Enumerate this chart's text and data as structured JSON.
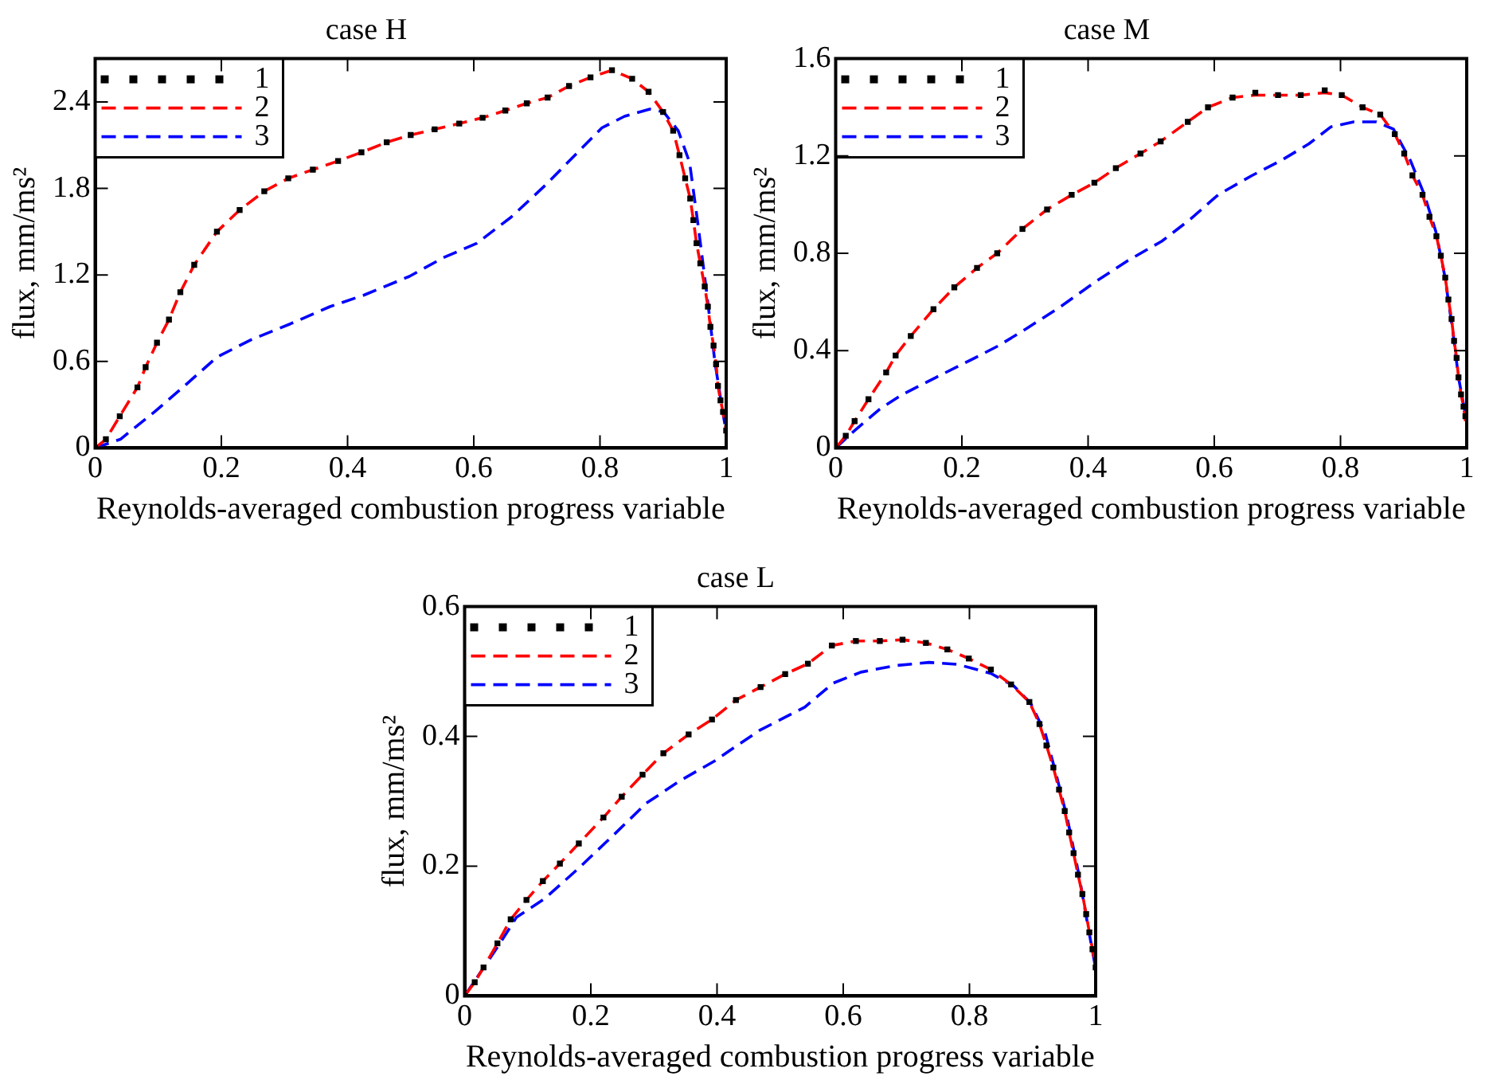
{
  "chart_data": [
    {
      "type": "line",
      "title": "case H",
      "xlabel": "Reynolds-averaged combustion progress variable",
      "ylabel": "flux, mm/ms²",
      "xlim": [
        0,
        1
      ],
      "xticks": [
        0,
        0.2,
        0.4,
        0.6,
        0.8,
        1
      ],
      "ylim": [
        0,
        2.7
      ],
      "yticks": [
        0,
        0.6,
        1.2,
        1.8,
        2.4
      ],
      "grid": false,
      "legend": "top left",
      "series": [
        {
          "name": "1",
          "type": "scatter",
          "marker": "square",
          "color": "#000000",
          "x": [
            0,
            0.017,
            0.039,
            0.067,
            0.08,
            0.098,
            0.117,
            0.135,
            0.157,
            0.193,
            0.229,
            0.268,
            0.306,
            0.345,
            0.385,
            0.422,
            0.462,
            0.5,
            0.538,
            0.577,
            0.614,
            0.65,
            0.684,
            0.717,
            0.751,
            0.785,
            0.819,
            0.851,
            0.877,
            0.9,
            0.916,
            0.926,
            0.935,
            0.943,
            0.948,
            0.953,
            0.959,
            0.966,
            0.971,
            0.975,
            0.98,
            0.984,
            0.987,
            0.991,
            0.995,
            1.0
          ],
          "values": [
            0,
            0.06,
            0.22,
            0.42,
            0.56,
            0.73,
            0.89,
            1.08,
            1.27,
            1.5,
            1.65,
            1.78,
            1.87,
            1.93,
            1.99,
            2.05,
            2.12,
            2.17,
            2.21,
            2.25,
            2.29,
            2.34,
            2.39,
            2.43,
            2.51,
            2.57,
            2.62,
            2.56,
            2.47,
            2.33,
            2.2,
            2.03,
            1.87,
            1.73,
            1.58,
            1.42,
            1.28,
            1.12,
            0.98,
            0.84,
            0.71,
            0.58,
            0.43,
            0.33,
            0.25,
            0.12
          ]
        },
        {
          "name": "2",
          "type": "line",
          "line_style": "dashed",
          "color": "#ff0000",
          "x": [
            0,
            0.017,
            0.039,
            0.067,
            0.08,
            0.098,
            0.117,
            0.135,
            0.157,
            0.193,
            0.229,
            0.268,
            0.306,
            0.345,
            0.385,
            0.422,
            0.462,
            0.5,
            0.538,
            0.577,
            0.614,
            0.65,
            0.684,
            0.717,
            0.751,
            0.785,
            0.819,
            0.851,
            0.877,
            0.9,
            0.916,
            0.926,
            0.935,
            0.943,
            0.948,
            0.953,
            0.959,
            0.966,
            0.971,
            0.975,
            0.98,
            0.984,
            0.987,
            0.991,
            0.995,
            1.0
          ],
          "values": [
            0,
            0.06,
            0.22,
            0.42,
            0.56,
            0.73,
            0.89,
            1.08,
            1.27,
            1.5,
            1.65,
            1.78,
            1.87,
            1.93,
            1.99,
            2.05,
            2.12,
            2.17,
            2.21,
            2.25,
            2.29,
            2.34,
            2.39,
            2.43,
            2.51,
            2.57,
            2.62,
            2.56,
            2.47,
            2.33,
            2.2,
            2.03,
            1.87,
            1.73,
            1.58,
            1.42,
            1.28,
            1.12,
            0.98,
            0.84,
            0.71,
            0.58,
            0.43,
            0.33,
            0.25,
            0.12
          ]
        },
        {
          "name": "3",
          "type": "line",
          "line_style": "dashed",
          "color": "#0000ff",
          "x": [
            0,
            0.04,
            0.094,
            0.139,
            0.193,
            0.247,
            0.309,
            0.372,
            0.426,
            0.498,
            0.552,
            0.605,
            0.659,
            0.713,
            0.767,
            0.803,
            0.839,
            0.879,
            0.901,
            0.924,
            0.942,
            0.955,
            0.969,
            0.982,
            0.993,
            1.0
          ],
          "values": [
            0,
            0.06,
            0.25,
            0.42,
            0.63,
            0.75,
            0.86,
            0.98,
            1.06,
            1.19,
            1.32,
            1.42,
            1.6,
            1.82,
            2.06,
            2.22,
            2.3,
            2.35,
            2.33,
            2.2,
            1.98,
            1.56,
            1.08,
            0.6,
            0.29,
            0.11
          ]
        }
      ]
    },
    {
      "type": "line",
      "title": "case M",
      "xlabel": "Reynolds-averaged combustion progress variable",
      "ylabel": "flux, mm/ms²",
      "xlim": [
        0,
        1
      ],
      "xticks": [
        0,
        0.2,
        0.4,
        0.6,
        0.8,
        1
      ],
      "ylim": [
        0,
        1.6
      ],
      "yticks": [
        0,
        0.4,
        0.8,
        1.2,
        1.6
      ],
      "grid": false,
      "legend": "top left",
      "series": [
        {
          "name": "1",
          "type": "scatter",
          "marker": "square",
          "color": "#000000",
          "x": [
            0,
            0.016,
            0.03,
            0.052,
            0.08,
            0.095,
            0.119,
            0.155,
            0.188,
            0.224,
            0.256,
            0.296,
            0.335,
            0.374,
            0.41,
            0.444,
            0.483,
            0.515,
            0.558,
            0.59,
            0.629,
            0.665,
            0.701,
            0.737,
            0.775,
            0.802,
            0.835,
            0.863,
            0.886,
            0.901,
            0.914,
            0.93,
            0.941,
            0.952,
            0.959,
            0.966,
            0.971,
            0.976,
            0.98,
            0.984,
            0.987,
            0.991,
            0.995,
            0.998
          ],
          "values": [
            0,
            0.05,
            0.11,
            0.2,
            0.31,
            0.38,
            0.46,
            0.57,
            0.66,
            0.74,
            0.8,
            0.9,
            0.98,
            1.04,
            1.09,
            1.15,
            1.21,
            1.26,
            1.34,
            1.4,
            1.44,
            1.46,
            1.45,
            1.45,
            1.47,
            1.45,
            1.4,
            1.37,
            1.29,
            1.21,
            1.12,
            1.04,
            0.95,
            0.87,
            0.79,
            0.7,
            0.61,
            0.53,
            0.44,
            0.37,
            0.29,
            0.22,
            0.17,
            0.13
          ]
        },
        {
          "name": "2",
          "type": "line",
          "line_style": "dashed",
          "color": "#ff0000",
          "x": [
            0,
            0.016,
            0.03,
            0.052,
            0.08,
            0.095,
            0.119,
            0.155,
            0.188,
            0.224,
            0.256,
            0.296,
            0.335,
            0.374,
            0.41,
            0.444,
            0.483,
            0.515,
            0.558,
            0.59,
            0.629,
            0.665,
            0.701,
            0.737,
            0.775,
            0.802,
            0.835,
            0.863,
            0.886,
            0.901,
            0.914,
            0.93,
            0.941,
            0.952,
            0.959,
            0.966,
            0.971,
            0.976,
            0.98,
            0.984,
            0.987,
            0.991,
            0.995,
            0.998
          ],
          "values": [
            0,
            0.05,
            0.11,
            0.2,
            0.31,
            0.38,
            0.46,
            0.57,
            0.66,
            0.74,
            0.8,
            0.9,
            0.98,
            1.04,
            1.09,
            1.15,
            1.21,
            1.26,
            1.34,
            1.4,
            1.44,
            1.45,
            1.45,
            1.45,
            1.46,
            1.45,
            1.4,
            1.37,
            1.29,
            1.21,
            1.12,
            1.04,
            0.95,
            0.87,
            0.79,
            0.7,
            0.61,
            0.53,
            0.44,
            0.37,
            0.29,
            0.22,
            0.17,
            0.11
          ]
        },
        {
          "name": "3",
          "type": "line",
          "line_style": "dashed",
          "color": "#0000ff",
          "x": [
            0,
            0.025,
            0.07,
            0.106,
            0.159,
            0.213,
            0.258,
            0.302,
            0.356,
            0.41,
            0.463,
            0.517,
            0.562,
            0.606,
            0.66,
            0.705,
            0.75,
            0.785,
            0.821,
            0.857,
            0.884,
            0.911,
            0.933,
            0.951,
            0.965,
            0.978,
            0.987,
            1.0
          ],
          "values": [
            0,
            0.06,
            0.16,
            0.22,
            0.29,
            0.36,
            0.42,
            0.49,
            0.58,
            0.68,
            0.77,
            0.85,
            0.94,
            1.04,
            1.12,
            1.18,
            1.25,
            1.32,
            1.34,
            1.34,
            1.31,
            1.18,
            1.04,
            0.89,
            0.71,
            0.48,
            0.29,
            0.11
          ]
        }
      ]
    },
    {
      "type": "line",
      "title": "case L",
      "xlabel": "Reynolds-averaged combustion progress variable",
      "ylabel": "flux, mm/ms²",
      "xlim": [
        0,
        1
      ],
      "xticks": [
        0,
        0.2,
        0.4,
        0.6,
        0.8,
        1
      ],
      "ylim": [
        0,
        0.6
      ],
      "yticks": [
        0,
        0.2,
        0.4,
        0.6
      ],
      "grid": false,
      "legend": "top left",
      "series": [
        {
          "name": "1",
          "type": "scatter",
          "marker": "square",
          "color": "#000000",
          "x": [
            0,
            0.016,
            0.03,
            0.052,
            0.073,
            0.098,
            0.124,
            0.151,
            0.181,
            0.22,
            0.249,
            0.282,
            0.315,
            0.355,
            0.392,
            0.43,
            0.469,
            0.508,
            0.544,
            0.582,
            0.62,
            0.658,
            0.694,
            0.731,
            0.765,
            0.799,
            0.834,
            0.866,
            0.895,
            0.911,
            0.922,
            0.933,
            0.942,
            0.951,
            0.958,
            0.965,
            0.972,
            0.979,
            0.985,
            0.99,
            0.995,
            1.0
          ],
          "values": [
            0,
            0.021,
            0.044,
            0.081,
            0.118,
            0.148,
            0.177,
            0.204,
            0.235,
            0.275,
            0.307,
            0.341,
            0.374,
            0.403,
            0.426,
            0.456,
            0.476,
            0.496,
            0.512,
            0.54,
            0.547,
            0.547,
            0.549,
            0.544,
            0.534,
            0.52,
            0.503,
            0.48,
            0.453,
            0.419,
            0.386,
            0.352,
            0.318,
            0.285,
            0.252,
            0.22,
            0.187,
            0.157,
            0.126,
            0.098,
            0.072,
            0.044
          ]
        },
        {
          "name": "2",
          "type": "line",
          "line_style": "dashed",
          "color": "#ff0000",
          "x": [
            0,
            0.016,
            0.03,
            0.052,
            0.073,
            0.098,
            0.124,
            0.151,
            0.181,
            0.22,
            0.249,
            0.282,
            0.315,
            0.355,
            0.392,
            0.43,
            0.469,
            0.508,
            0.544,
            0.582,
            0.62,
            0.658,
            0.694,
            0.731,
            0.765,
            0.799,
            0.834,
            0.866,
            0.895,
            0.911,
            0.922,
            0.933,
            0.942,
            0.951,
            0.958,
            0.965,
            0.972,
            0.979,
            0.985,
            0.99,
            0.995,
            1.0
          ],
          "values": [
            0,
            0.021,
            0.044,
            0.081,
            0.118,
            0.148,
            0.177,
            0.204,
            0.235,
            0.275,
            0.307,
            0.341,
            0.374,
            0.403,
            0.426,
            0.456,
            0.476,
            0.496,
            0.512,
            0.54,
            0.547,
            0.547,
            0.549,
            0.544,
            0.534,
            0.52,
            0.503,
            0.48,
            0.453,
            0.419,
            0.386,
            0.352,
            0.318,
            0.285,
            0.252,
            0.22,
            0.187,
            0.157,
            0.126,
            0.098,
            0.072,
            0.044
          ]
        },
        {
          "name": "3",
          "type": "line",
          "line_style": "dashed",
          "color": "#0000ff",
          "x": [
            0,
            0.029,
            0.056,
            0.082,
            0.127,
            0.181,
            0.235,
            0.288,
            0.342,
            0.396,
            0.432,
            0.467,
            0.539,
            0.584,
            0.628,
            0.682,
            0.736,
            0.781,
            0.834,
            0.87,
            0.897,
            0.92,
            0.937,
            0.955,
            0.973,
            0.987,
            1.0
          ],
          "values": [
            0,
            0.042,
            0.081,
            0.121,
            0.15,
            0.197,
            0.247,
            0.297,
            0.332,
            0.362,
            0.386,
            0.409,
            0.445,
            0.482,
            0.499,
            0.509,
            0.514,
            0.511,
            0.497,
            0.478,
            0.451,
            0.405,
            0.343,
            0.274,
            0.189,
            0.112,
            0.042
          ]
        }
      ]
    }
  ]
}
